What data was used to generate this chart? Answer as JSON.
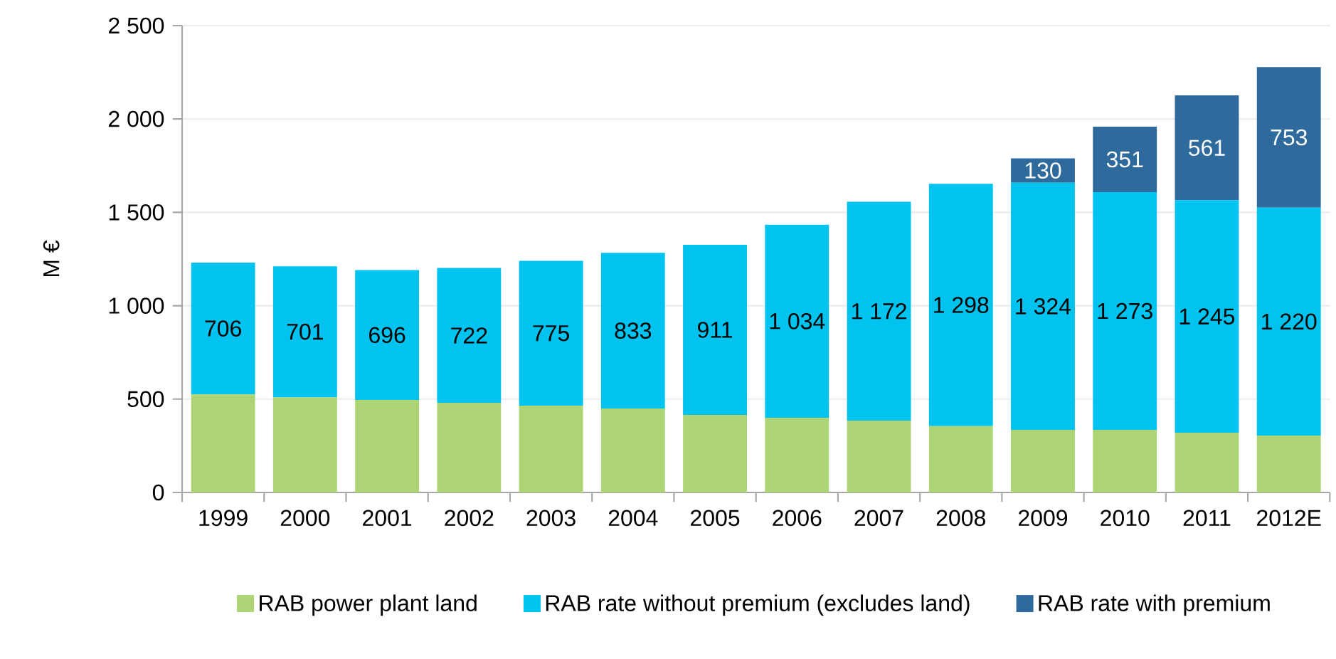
{
  "chart_data": {
    "type": "bar",
    "stacked": true,
    "ylabel": "M €",
    "categories": [
      "1999",
      "2000",
      "2001",
      "2002",
      "2003",
      "2004",
      "2005",
      "2006",
      "2007",
      "2008",
      "2009",
      "2010",
      "2011",
      "2012E"
    ],
    "series": [
      {
        "name": "RAB power plant land",
        "color": "#add576",
        "values": [
          525,
          510,
          495,
          480,
          465,
          450,
          415,
          400,
          385,
          355,
          335,
          335,
          320,
          305
        ]
      },
      {
        "name": "RAB rate without premium (excludes land)",
        "color": "#00c3ef",
        "values": [
          706,
          701,
          696,
          722,
          775,
          833,
          911,
          1034,
          1172,
          1298,
          1324,
          1273,
          1245,
          1220
        ],
        "value_labels": [
          "706",
          "701",
          "696",
          "722",
          "775",
          "833",
          "911",
          "1 034",
          "1 172",
          "1 298",
          "1 324",
          "1 273",
          "1 245",
          "1 220"
        ]
      },
      {
        "name": "RAB rate with premium",
        "color": "#2e6b9c",
        "values": [
          null,
          null,
          null,
          null,
          null,
          null,
          null,
          null,
          null,
          null,
          130,
          351,
          561,
          753
        ],
        "value_labels": [
          null,
          null,
          null,
          null,
          null,
          null,
          null,
          null,
          null,
          null,
          "130",
          "351",
          "561",
          "753"
        ]
      }
    ],
    "ylim": [
      0,
      2500
    ],
    "yticks": [
      0,
      500,
      {
        "value": 1000,
        "label": "1 000"
      },
      {
        "value": 1500,
        "label": "1 500"
      },
      {
        "value": 2000,
        "label": "2 000"
      },
      {
        "value": 2500,
        "label": "2 500"
      }
    ],
    "grid": "y",
    "legend": "bottom"
  }
}
